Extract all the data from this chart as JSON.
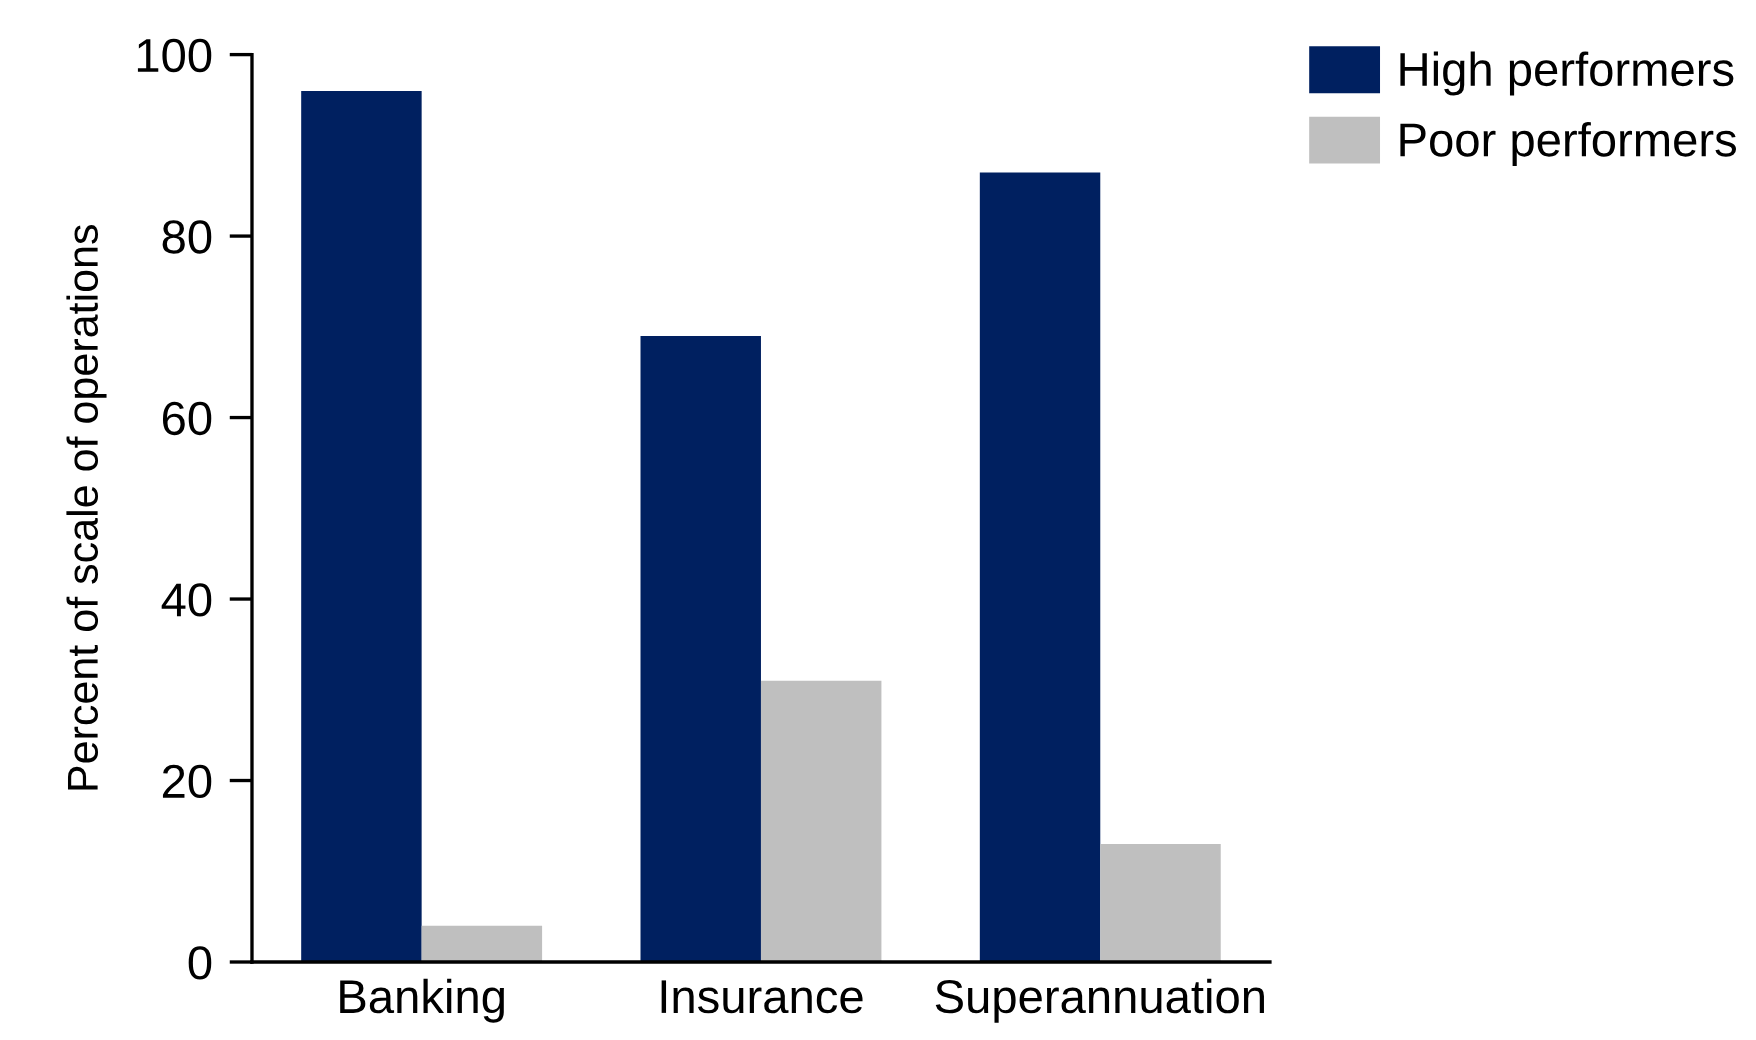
{
  "chart_data": {
    "type": "bar",
    "ylabel": "Percent of scale of operations",
    "categories": [
      "Banking",
      "Insurance",
      "Superannuation"
    ],
    "series": [
      {
        "name": "High performers",
        "color": "#002060",
        "values": [
          96,
          69,
          87
        ]
      },
      {
        "name": "Poor performers",
        "color": "#bfbfbf",
        "values": [
          4,
          31,
          13
        ]
      }
    ],
    "ylim": [
      0,
      100
    ],
    "yticks": [
      0,
      20,
      40,
      60,
      80,
      100
    ],
    "grid": false,
    "legend": "top right"
  }
}
